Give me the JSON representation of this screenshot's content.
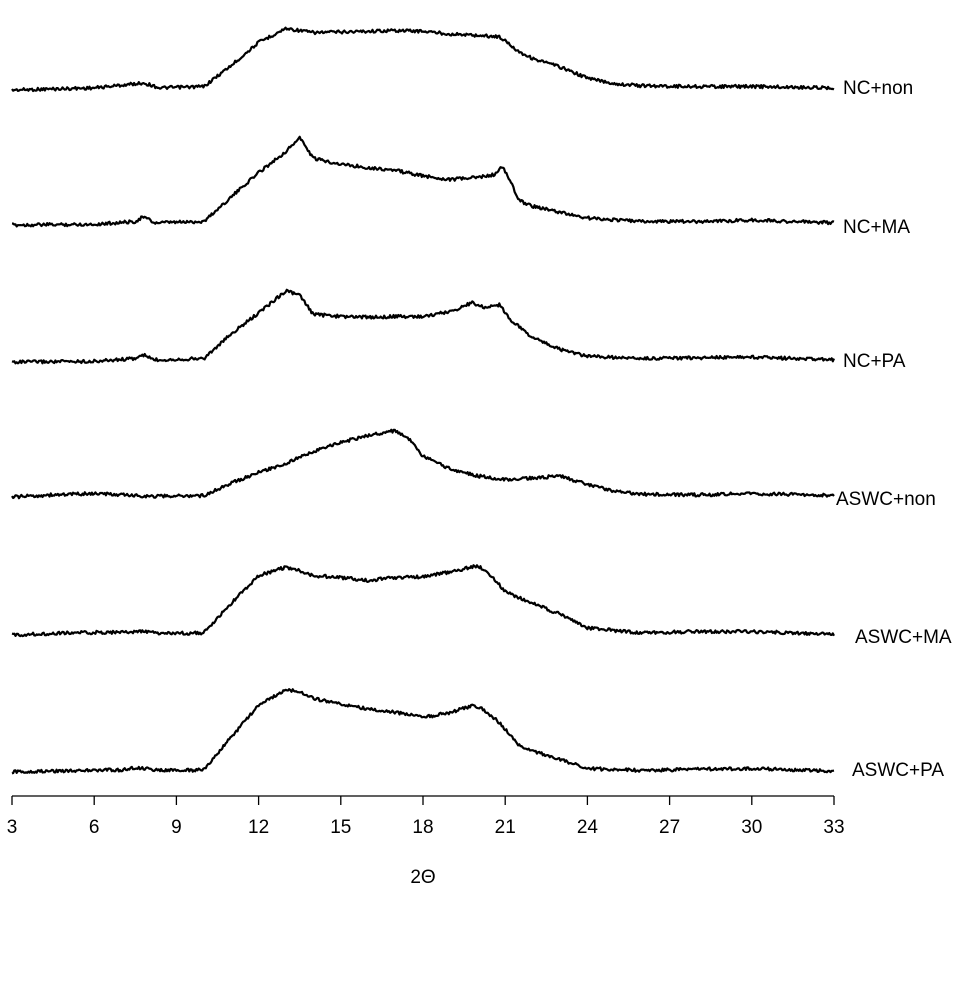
{
  "chart_data": {
    "type": "line",
    "xlabel": "2Θ",
    "xlim": [
      3,
      33
    ],
    "x_ticks": [
      3,
      6,
      9,
      12,
      15,
      18,
      21,
      24,
      27,
      30,
      33
    ],
    "series": [
      {
        "name": "NC+non",
        "x": [
          3,
          6,
          7.8,
          8.4,
          10,
          11,
          12,
          13,
          14,
          15,
          16,
          17,
          18,
          19,
          20,
          20.8,
          21.5,
          22,
          23,
          24,
          25,
          26,
          28,
          30,
          33
        ],
        "y": [
          0.0,
          0.03,
          0.1,
          0.03,
          0.05,
          0.35,
          0.68,
          0.88,
          0.82,
          0.83,
          0.84,
          0.85,
          0.84,
          0.8,
          0.78,
          0.76,
          0.55,
          0.45,
          0.33,
          0.17,
          0.09,
          0.06,
          0.05,
          0.05,
          0.03
        ]
      },
      {
        "name": "NC+MA",
        "x": [
          3,
          6,
          7.5,
          7.8,
          8.2,
          10,
          11,
          12,
          13,
          13.5,
          14,
          15,
          16,
          17,
          18,
          19,
          20,
          20.6,
          20.9,
          21.2,
          21.5,
          22,
          23,
          24,
          26,
          28,
          30,
          33
        ],
        "y": [
          0.0,
          0.01,
          0.05,
          0.12,
          0.03,
          0.05,
          0.4,
          0.75,
          1.05,
          1.25,
          0.95,
          0.87,
          0.82,
          0.78,
          0.7,
          0.65,
          0.68,
          0.72,
          0.83,
          0.62,
          0.35,
          0.27,
          0.18,
          0.1,
          0.05,
          0.05,
          0.07,
          0.03
        ]
      },
      {
        "name": "NC+PA",
        "x": [
          3,
          6,
          7.5,
          7.8,
          8.2,
          10,
          11,
          12,
          13,
          13.5,
          14,
          15,
          16,
          17,
          18,
          19,
          19.8,
          20.2,
          20.8,
          21.2,
          22,
          23,
          24,
          26,
          28,
          30,
          33
        ],
        "y": [
          0.0,
          0.01,
          0.05,
          0.1,
          0.03,
          0.05,
          0.4,
          0.7,
          1.02,
          0.95,
          0.68,
          0.65,
          0.64,
          0.65,
          0.65,
          0.72,
          0.85,
          0.78,
          0.82,
          0.6,
          0.35,
          0.18,
          0.08,
          0.05,
          0.06,
          0.07,
          0.03
        ]
      },
      {
        "name": "ASWC+non",
        "x": [
          3,
          4.5,
          6,
          8,
          10,
          11,
          12,
          13,
          14,
          15,
          16,
          17,
          17.5,
          18,
          19,
          20,
          21,
          22,
          23,
          24,
          25,
          26,
          28,
          30,
          33
        ],
        "y": [
          0.0,
          0.03,
          0.05,
          0.01,
          0.02,
          0.2,
          0.35,
          0.48,
          0.65,
          0.78,
          0.88,
          0.95,
          0.82,
          0.58,
          0.4,
          0.3,
          0.25,
          0.27,
          0.3,
          0.18,
          0.08,
          0.04,
          0.03,
          0.05,
          0.02
        ]
      },
      {
        "name": "ASWC+MA",
        "x": [
          3,
          5,
          7,
          7.8,
          8.5,
          10,
          11,
          12,
          13,
          13.5,
          14,
          15,
          16,
          17,
          18,
          19,
          20,
          20.5,
          21,
          22,
          23,
          24,
          26,
          28,
          30,
          33
        ],
        "y": [
          0.0,
          0.03,
          0.04,
          0.05,
          0.02,
          0.03,
          0.45,
          0.85,
          0.97,
          0.92,
          0.85,
          0.82,
          0.78,
          0.82,
          0.83,
          0.9,
          0.99,
          0.85,
          0.62,
          0.45,
          0.3,
          0.1,
          0.03,
          0.05,
          0.05,
          0.01
        ]
      },
      {
        "name": "ASWC+PA",
        "x": [
          3,
          5,
          7,
          7.5,
          8.5,
          10,
          11,
          12,
          13,
          13.5,
          14,
          15,
          16,
          17,
          18,
          19,
          19.8,
          20.2,
          20.8,
          21.5,
          22,
          23,
          24,
          26,
          28,
          30,
          33
        ],
        "y": [
          0.0,
          0.02,
          0.03,
          0.06,
          0.02,
          0.03,
          0.5,
          0.95,
          1.18,
          1.15,
          1.05,
          0.97,
          0.9,
          0.85,
          0.78,
          0.85,
          0.95,
          0.9,
          0.7,
          0.38,
          0.3,
          0.18,
          0.05,
          0.02,
          0.04,
          0.05,
          0.01
        ]
      }
    ]
  }
}
